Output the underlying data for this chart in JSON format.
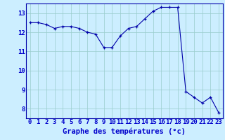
{
  "hours": [
    0,
    1,
    2,
    3,
    4,
    5,
    6,
    7,
    8,
    9,
    10,
    11,
    12,
    13,
    14,
    15,
    16,
    17,
    18,
    19,
    20,
    21,
    22,
    23
  ],
  "temperatures": [
    12.5,
    12.5,
    12.4,
    12.2,
    12.3,
    12.3,
    12.2,
    12.0,
    11.9,
    11.2,
    11.2,
    11.8,
    12.2,
    12.3,
    12.7,
    13.1,
    13.3,
    13.3,
    13.3,
    8.9,
    8.6,
    8.3,
    8.6,
    7.8
  ],
  "xlabel": "Graphe des températures (°c)",
  "bg_color": "#cceeff",
  "line_color": "#0000aa",
  "marker_color": "#0000aa",
  "grid_color": "#99cccc",
  "text_color": "#0000cc",
  "ylim": [
    7.5,
    13.5
  ],
  "xlim": [
    -0.5,
    23.5
  ],
  "yticks": [
    8,
    9,
    10,
    11,
    12,
    13
  ],
  "xticks": [
    0,
    1,
    2,
    3,
    4,
    5,
    6,
    7,
    8,
    9,
    10,
    11,
    12,
    13,
    14,
    15,
    16,
    17,
    18,
    19,
    20,
    21,
    22,
    23
  ],
  "xtick_labels": [
    "0",
    "1",
    "2",
    "3",
    "4",
    "5",
    "6",
    "7",
    "8",
    "9",
    "10",
    "11",
    "12",
    "13",
    "14",
    "15",
    "16",
    "17",
    "18",
    "19",
    "20",
    "21",
    "22",
    "23"
  ],
  "ytick_labels": [
    "8",
    "9",
    "10",
    "11",
    "12",
    "13"
  ],
  "spine_color": "#0000aa",
  "axis_label_fontsize": 7.5,
  "tick_fontsize": 6.5,
  "label_fontweight": "bold"
}
